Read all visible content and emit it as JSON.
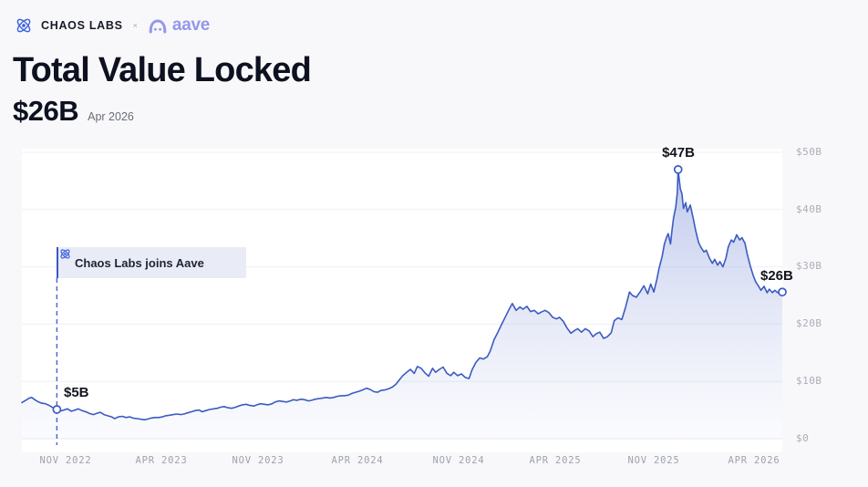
{
  "header": {
    "brand": "CHAOS LABS",
    "separator": "×",
    "partner_wordmark": "aave",
    "brand_color": "#171b26",
    "aave_color": "#9598ea"
  },
  "title": "Total Value Locked",
  "current_value": "$26B",
  "current_value_date": "Apr 2026",
  "chart_data": {
    "type": "area",
    "title": "Total Value Locked",
    "unit": "USD billions",
    "ylim": [
      0,
      50
    ],
    "grid": true,
    "y_axis_side": "right",
    "y_ticks": [
      {
        "label": "$50B",
        "value": 50
      },
      {
        "label": "$40B",
        "value": 40
      },
      {
        "label": "$30B",
        "value": 30
      },
      {
        "label": "$20B",
        "value": 20
      },
      {
        "label": "$10B",
        "value": 10
      },
      {
        "label": "$0",
        "value": 0
      }
    ],
    "x_ticks": [
      {
        "label": "NOV 2022",
        "f": 0.058
      },
      {
        "label": "APR 2023",
        "f": 0.183
      },
      {
        "label": "NOV 2023",
        "f": 0.311
      },
      {
        "label": "APR 2024",
        "f": 0.441
      },
      {
        "label": "NOV 2024",
        "f": 0.574
      },
      {
        "label": "APR 2025",
        "f": 0.701
      },
      {
        "label": "NOV 2025",
        "f": 0.831
      },
      {
        "label": "APR 2026",
        "f": 0.963
      }
    ],
    "annotations": [
      {
        "label": "$5B",
        "f": 0.046,
        "value": 5.1
      },
      {
        "label": "$47B",
        "f": 0.863,
        "value": 47
      },
      {
        "label": "$26B",
        "f": 1.0,
        "value": 25.6
      }
    ],
    "event": {
      "label": "Chaos Labs joins Aave",
      "f": 0.046
    },
    "colors": {
      "line": "#3c5bc2",
      "fill_top": "rgba(96,119,205,0.40)",
      "fill_mid": "rgba(110,132,212,0.20)",
      "fill_bottom": "rgba(150,165,225,0.04)",
      "grid": "#eef0f4",
      "baseline": "#e7e9ee",
      "dashed": "#4d6bd0",
      "axis_text": "#abaeb9",
      "label_text": "#13151e"
    },
    "series": [
      {
        "name": "TVL",
        "points": [
          [
            0.0,
            6.3
          ],
          [
            0.005,
            6.7
          ],
          [
            0.01,
            7.1
          ],
          [
            0.013,
            7.2
          ],
          [
            0.017,
            6.8
          ],
          [
            0.022,
            6.4
          ],
          [
            0.026,
            6.2
          ],
          [
            0.031,
            6.1
          ],
          [
            0.036,
            5.8
          ],
          [
            0.041,
            5.4
          ],
          [
            0.046,
            5.1
          ],
          [
            0.05,
            4.8
          ],
          [
            0.055,
            5.0
          ],
          [
            0.06,
            5.2
          ],
          [
            0.065,
            4.8
          ],
          [
            0.07,
            5.0
          ],
          [
            0.074,
            5.2
          ],
          [
            0.079,
            4.9
          ],
          [
            0.084,
            4.7
          ],
          [
            0.089,
            4.4
          ],
          [
            0.094,
            4.2
          ],
          [
            0.098,
            4.4
          ],
          [
            0.103,
            4.6
          ],
          [
            0.108,
            4.2
          ],
          [
            0.113,
            4.0
          ],
          [
            0.118,
            3.8
          ],
          [
            0.122,
            3.5
          ],
          [
            0.127,
            3.8
          ],
          [
            0.132,
            3.9
          ],
          [
            0.137,
            3.7
          ],
          [
            0.142,
            3.8
          ],
          [
            0.146,
            3.6
          ],
          [
            0.151,
            3.5
          ],
          [
            0.156,
            3.4
          ],
          [
            0.161,
            3.3
          ],
          [
            0.165,
            3.4
          ],
          [
            0.17,
            3.6
          ],
          [
            0.175,
            3.7
          ],
          [
            0.18,
            3.7
          ],
          [
            0.185,
            3.8
          ],
          [
            0.189,
            4.0
          ],
          [
            0.194,
            4.1
          ],
          [
            0.199,
            4.2
          ],
          [
            0.204,
            4.3
          ],
          [
            0.209,
            4.2
          ],
          [
            0.213,
            4.3
          ],
          [
            0.218,
            4.5
          ],
          [
            0.223,
            4.7
          ],
          [
            0.228,
            4.9
          ],
          [
            0.233,
            5.0
          ],
          [
            0.237,
            4.7
          ],
          [
            0.242,
            4.9
          ],
          [
            0.247,
            5.1
          ],
          [
            0.252,
            5.2
          ],
          [
            0.257,
            5.3
          ],
          [
            0.261,
            5.5
          ],
          [
            0.266,
            5.6
          ],
          [
            0.271,
            5.4
          ],
          [
            0.276,
            5.3
          ],
          [
            0.281,
            5.5
          ],
          [
            0.285,
            5.7
          ],
          [
            0.29,
            5.9
          ],
          [
            0.295,
            6.0
          ],
          [
            0.3,
            5.8
          ],
          [
            0.305,
            5.7
          ],
          [
            0.309,
            5.9
          ],
          [
            0.314,
            6.1
          ],
          [
            0.319,
            6.0
          ],
          [
            0.324,
            5.9
          ],
          [
            0.329,
            6.1
          ],
          [
            0.333,
            6.4
          ],
          [
            0.338,
            6.6
          ],
          [
            0.343,
            6.5
          ],
          [
            0.348,
            6.4
          ],
          [
            0.353,
            6.6
          ],
          [
            0.357,
            6.8
          ],
          [
            0.362,
            6.7
          ],
          [
            0.367,
            6.9
          ],
          [
            0.372,
            6.8
          ],
          [
            0.377,
            6.6
          ],
          [
            0.381,
            6.7
          ],
          [
            0.386,
            6.9
          ],
          [
            0.391,
            7.0
          ],
          [
            0.396,
            7.1
          ],
          [
            0.4,
            7.2
          ],
          [
            0.405,
            7.1
          ],
          [
            0.41,
            7.2
          ],
          [
            0.415,
            7.4
          ],
          [
            0.42,
            7.5
          ],
          [
            0.424,
            7.5
          ],
          [
            0.429,
            7.6
          ],
          [
            0.434,
            7.9
          ],
          [
            0.439,
            8.1
          ],
          [
            0.444,
            8.3
          ],
          [
            0.448,
            8.5
          ],
          [
            0.453,
            8.8
          ],
          [
            0.458,
            8.6
          ],
          [
            0.463,
            8.2
          ],
          [
            0.468,
            8.1
          ],
          [
            0.472,
            8.4
          ],
          [
            0.477,
            8.5
          ],
          [
            0.482,
            8.7
          ],
          [
            0.487,
            9.0
          ],
          [
            0.492,
            9.5
          ],
          [
            0.496,
            10.2
          ],
          [
            0.501,
            11.0
          ],
          [
            0.506,
            11.6
          ],
          [
            0.511,
            12.1
          ],
          [
            0.516,
            11.4
          ],
          [
            0.52,
            12.6
          ],
          [
            0.525,
            12.3
          ],
          [
            0.53,
            11.5
          ],
          [
            0.535,
            10.9
          ],
          [
            0.54,
            12.3
          ],
          [
            0.544,
            11.6
          ],
          [
            0.549,
            12.1
          ],
          [
            0.554,
            12.5
          ],
          [
            0.559,
            11.4
          ],
          [
            0.564,
            11.0
          ],
          [
            0.568,
            11.6
          ],
          [
            0.573,
            11.0
          ],
          [
            0.578,
            11.3
          ],
          [
            0.583,
            10.7
          ],
          [
            0.588,
            10.5
          ],
          [
            0.592,
            12.0
          ],
          [
            0.597,
            13.3
          ],
          [
            0.602,
            14.1
          ],
          [
            0.607,
            13.9
          ],
          [
            0.612,
            14.3
          ],
          [
            0.616,
            15.3
          ],
          [
            0.621,
            17.3
          ],
          [
            0.626,
            18.6
          ],
          [
            0.631,
            20.0
          ],
          [
            0.636,
            21.3
          ],
          [
            0.64,
            22.4
          ],
          [
            0.645,
            23.6
          ],
          [
            0.65,
            22.4
          ],
          [
            0.655,
            23.0
          ],
          [
            0.659,
            22.6
          ],
          [
            0.664,
            23.1
          ],
          [
            0.669,
            22.2
          ],
          [
            0.674,
            22.4
          ],
          [
            0.679,
            21.8
          ],
          [
            0.683,
            22.1
          ],
          [
            0.688,
            22.4
          ],
          [
            0.693,
            22.0
          ],
          [
            0.698,
            21.2
          ],
          [
            0.703,
            20.9
          ],
          [
            0.707,
            21.2
          ],
          [
            0.712,
            20.5
          ],
          [
            0.717,
            19.3
          ],
          [
            0.722,
            18.4
          ],
          [
            0.727,
            18.9
          ],
          [
            0.731,
            19.2
          ],
          [
            0.736,
            18.6
          ],
          [
            0.741,
            19.2
          ],
          [
            0.746,
            18.8
          ],
          [
            0.751,
            17.8
          ],
          [
            0.755,
            18.3
          ],
          [
            0.76,
            18.6
          ],
          [
            0.765,
            17.5
          ],
          [
            0.77,
            17.8
          ],
          [
            0.775,
            18.5
          ],
          [
            0.779,
            20.6
          ],
          [
            0.784,
            21.1
          ],
          [
            0.789,
            20.8
          ],
          [
            0.794,
            23.0
          ],
          [
            0.799,
            25.6
          ],
          [
            0.803,
            25.0
          ],
          [
            0.808,
            24.7
          ],
          [
            0.813,
            25.6
          ],
          [
            0.818,
            26.7
          ],
          [
            0.823,
            25.3
          ],
          [
            0.827,
            27.0
          ],
          [
            0.831,
            25.6
          ],
          [
            0.835,
            27.8
          ],
          [
            0.838,
            29.8
          ],
          [
            0.842,
            31.8
          ],
          [
            0.845,
            34.0
          ],
          [
            0.848,
            35.2
          ],
          [
            0.85,
            35.8
          ],
          [
            0.853,
            34.0
          ],
          [
            0.855,
            36.5
          ],
          [
            0.857,
            38.5
          ],
          [
            0.86,
            40.5
          ],
          [
            0.862,
            43.0
          ],
          [
            0.863,
            47.0
          ],
          [
            0.866,
            43.6
          ],
          [
            0.868,
            42.8
          ],
          [
            0.87,
            40.2
          ],
          [
            0.873,
            41.2
          ],
          [
            0.875,
            39.6
          ],
          [
            0.879,
            40.8
          ],
          [
            0.883,
            38.4
          ],
          [
            0.886,
            36.4
          ],
          [
            0.89,
            34.2
          ],
          [
            0.893,
            33.4
          ],
          [
            0.897,
            32.6
          ],
          [
            0.9,
            32.9
          ],
          [
            0.904,
            31.6
          ],
          [
            0.908,
            30.6
          ],
          [
            0.911,
            31.3
          ],
          [
            0.915,
            30.3
          ],
          [
            0.918,
            30.9
          ],
          [
            0.922,
            30.0
          ],
          [
            0.926,
            31.6
          ],
          [
            0.929,
            33.5
          ],
          [
            0.933,
            34.7
          ],
          [
            0.936,
            34.3
          ],
          [
            0.94,
            35.6
          ],
          [
            0.944,
            34.7
          ],
          [
            0.947,
            35.1
          ],
          [
            0.951,
            34.1
          ],
          [
            0.954,
            32.2
          ],
          [
            0.958,
            30.1
          ],
          [
            0.962,
            28.4
          ],
          [
            0.965,
            27.4
          ],
          [
            0.969,
            26.6
          ],
          [
            0.972,
            25.9
          ],
          [
            0.976,
            26.6
          ],
          [
            0.98,
            25.5
          ],
          [
            0.983,
            26.1
          ],
          [
            0.987,
            25.5
          ],
          [
            0.99,
            25.9
          ],
          [
            0.994,
            25.5
          ],
          [
            1.0,
            25.6
          ]
        ]
      }
    ]
  }
}
